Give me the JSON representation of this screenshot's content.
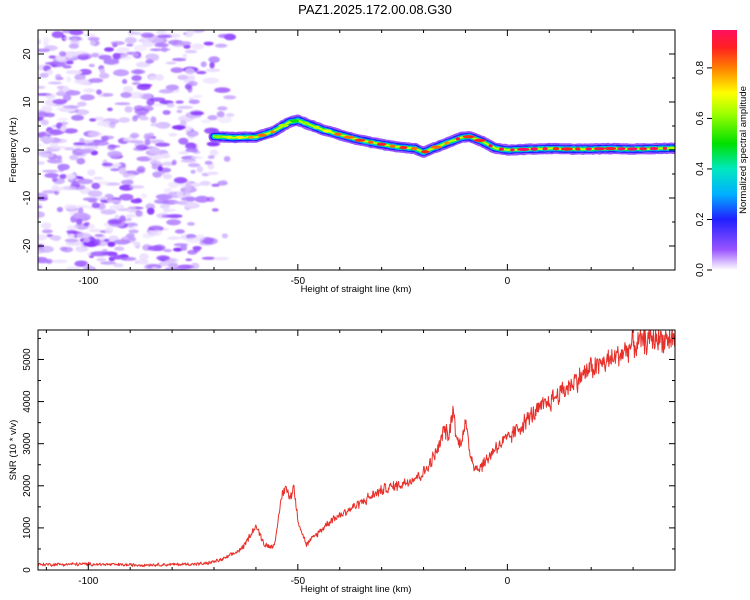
{
  "title": "PAZ1.2025.172.00.08.G30",
  "colors": {
    "background": "#ffffff",
    "frame": "#000000",
    "snr_line": "#e8302a",
    "scatter_noise": "#9a55ff"
  },
  "chart_data": [
    {
      "type": "heatmap",
      "title": "PAZ1.2025.172.00.08.G30",
      "xlabel": "Height of straight line (km)",
      "ylabel": "Frequency (Hz)",
      "xlim": [
        -112,
        40
      ],
      "ylim": [
        -25,
        25
      ],
      "x_ticks": [
        -100,
        -50,
        0
      ],
      "y_ticks": [
        -20,
        -10,
        0,
        10,
        20
      ],
      "grid": false,
      "noise_region_x": [
        -112,
        -70
      ],
      "ridge": {
        "x": [
          -70,
          -65,
          -60,
          -56,
          -52,
          -50,
          -47,
          -44,
          -40,
          -35,
          -30,
          -26,
          -22,
          -20,
          -17,
          -14,
          -11,
          -9,
          -6,
          -3,
          0,
          3,
          6,
          10,
          15,
          20,
          25,
          30,
          35,
          40
        ],
        "frequency": [
          2.8,
          2.6,
          2.7,
          3.8,
          5.8,
          6.2,
          5.2,
          4.2,
          3.2,
          2.0,
          1.2,
          0.6,
          0.3,
          -0.5,
          0.6,
          1.6,
          2.6,
          2.8,
          1.8,
          0.4,
          0.0,
          0.1,
          0.2,
          0.3,
          0.2,
          0.2,
          0.3,
          0.2,
          0.3,
          0.4
        ],
        "amplitude": [
          0.65,
          0.7,
          0.75,
          0.8,
          0.6,
          0.55,
          0.6,
          0.7,
          0.8,
          0.85,
          0.85,
          0.9,
          0.88,
          0.8,
          0.82,
          0.85,
          0.9,
          0.9,
          0.85,
          0.9,
          0.9,
          0.92,
          0.95,
          0.95,
          0.95,
          0.95,
          0.95,
          0.95,
          0.95,
          0.95
        ]
      },
      "colorbar": {
        "label": "Normalized spectral amplitude",
        "range": [
          0.0,
          0.95
        ],
        "ticks": [
          0.0,
          0.2,
          0.4,
          0.6,
          0.8
        ],
        "colormap": [
          [
            0.0,
            "#ffffff"
          ],
          [
            0.08,
            "#9a55ff"
          ],
          [
            0.2,
            "#2020ff"
          ],
          [
            0.3,
            "#00b0ff"
          ],
          [
            0.4,
            "#00e8c0"
          ],
          [
            0.5,
            "#00e000"
          ],
          [
            0.62,
            "#a0ff00"
          ],
          [
            0.7,
            "#ffff00"
          ],
          [
            0.8,
            "#ff8000"
          ],
          [
            0.88,
            "#ff2020"
          ],
          [
            0.95,
            "#ff1060"
          ]
        ]
      }
    },
    {
      "type": "line",
      "xlabel": "Height of straight line (km)",
      "ylabel": "SNR (10 * v/v)",
      "xlim": [
        -112,
        40
      ],
      "ylim": [
        0,
        5700
      ],
      "x_ticks": [
        -100,
        -50,
        0
      ],
      "y_ticks": [
        0,
        1000,
        2000,
        3000,
        4000,
        5000
      ],
      "grid": false,
      "envelope": {
        "x": [
          -112,
          -100,
          -90,
          -80,
          -72,
          -68,
          -65,
          -63,
          -61,
          -60,
          -58,
          -56,
          -55,
          -54,
          -53,
          -52,
          -51,
          -50,
          -49,
          -48,
          -46,
          -44,
          -42,
          -40,
          -35,
          -30,
          -25,
          -20,
          -18,
          -16,
          -15,
          -14,
          -13,
          -12,
          -11,
          -10,
          -9,
          -8,
          -7,
          -5,
          -3,
          0,
          5,
          10,
          15,
          20,
          25,
          30,
          35,
          40
        ],
        "snr": [
          130,
          140,
          120,
          130,
          150,
          250,
          400,
          550,
          900,
          1050,
          600,
          550,
          900,
          1700,
          2000,
          1700,
          2000,
          1200,
          900,
          600,
          800,
          1000,
          1200,
          1300,
          1600,
          1900,
          2050,
          2300,
          2600,
          3000,
          3400,
          3100,
          3900,
          3000,
          3100,
          3500,
          2800,
          2500,
          2400,
          2600,
          2900,
          3100,
          3600,
          4000,
          4400,
          4800,
          5000,
          5350,
          5500,
          5500
        ]
      }
    }
  ]
}
